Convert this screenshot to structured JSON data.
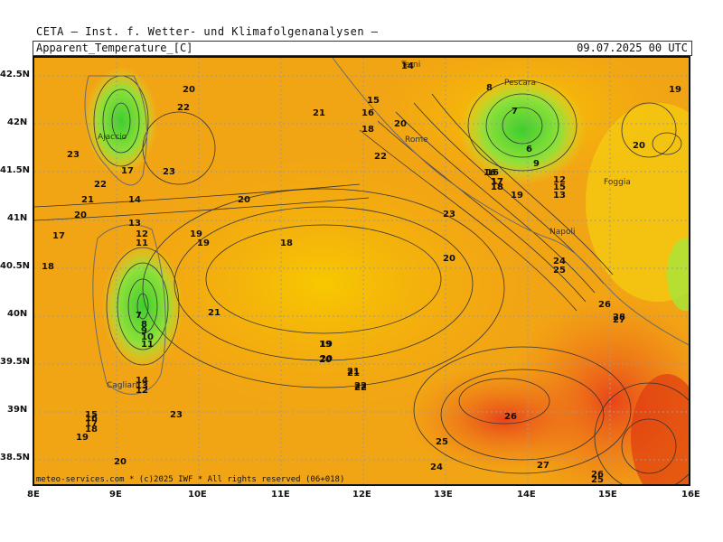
{
  "header": {
    "title": "CETA — Inst. f. Wetter- und Klimafolgenanalysen —",
    "parameter": "Apparent_Temperature_[C]",
    "timestamp": "09.07.2025 00 UTC"
  },
  "credit": "meteo-services.com * (c)2025 IWF * All rights reserved (06+018)",
  "axes": {
    "longitude_ticks": [
      "8E",
      "9E",
      "10E",
      "11E",
      "12E",
      "13E",
      "14E",
      "15E",
      "16E"
    ],
    "latitude_ticks": [
      "42.5N",
      "42N",
      "41.5N",
      "41N",
      "40.5N",
      "40N",
      "39.5N",
      "39N",
      "38.5N"
    ]
  },
  "cities": [
    "Terni",
    "Pescara",
    "Ajaccio",
    "Rome",
    "Foggia",
    "Napoli",
    "Cagliari"
  ],
  "contour_labels": [
    "14",
    "8",
    "19",
    "20",
    "22",
    "21",
    "15",
    "16",
    "18",
    "20",
    "7",
    "6",
    "20",
    "23",
    "17",
    "22",
    "9",
    "23",
    "22",
    "21",
    "20",
    "16",
    "17",
    "18",
    "19",
    "12",
    "13",
    "15",
    "20",
    "18",
    "19",
    "23",
    "20",
    "14",
    "17",
    "13",
    "12",
    "11",
    "19",
    "19",
    "18",
    "16",
    "17",
    "18",
    "20",
    "21",
    "22",
    "23",
    "24",
    "25",
    "26",
    "27",
    "28",
    "21",
    "19",
    "20",
    "21",
    "22",
    "26",
    "25",
    "24",
    "27",
    "26",
    "25",
    "20",
    "19",
    "18",
    "17",
    "16",
    "15",
    "14",
    "13",
    "12",
    "11",
    "10",
    "9",
    "8",
    "7"
  ],
  "colors": {
    "green": "#55d23a",
    "lightgreen": "#a6e63a",
    "yellow": "#f5d400",
    "orange": "#f59a18",
    "darkorange": "#ee7a1a",
    "red": "#e84a14"
  }
}
